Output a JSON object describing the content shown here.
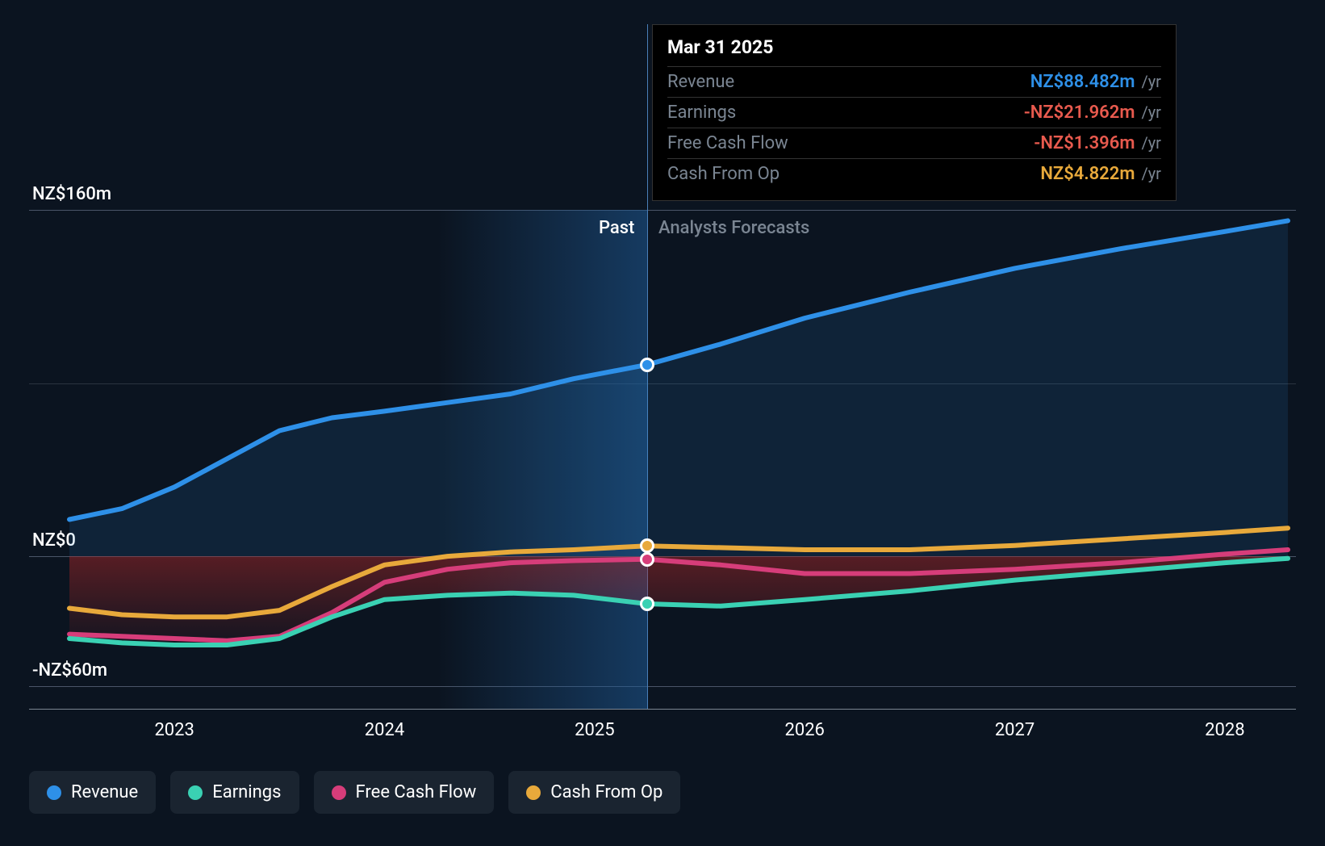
{
  "chart": {
    "type": "line",
    "background_color": "#0b1420",
    "grid_color_major": "#4a5568",
    "grid_color_minor": "#2a3440",
    "text_color": "#ffffff",
    "muted_text_color": "#7a8592",
    "line_width": 6,
    "marker_size": 18,
    "marker_border": "#ffffff",
    "y_axis": {
      "min": -60,
      "max": 160,
      "ticks": [
        {
          "value": 160,
          "label": "NZ$160m"
        },
        {
          "value": 0,
          "label": "NZ$0"
        },
        {
          "value": -60,
          "label": "-NZ$60m"
        }
      ],
      "minor_tick_at": 80
    },
    "x_axis": {
      "min": 2022.5,
      "max": 2028.3,
      "ticks": [
        2023,
        2024,
        2025,
        2026,
        2027,
        2028
      ]
    },
    "divider": {
      "x": 2025.25,
      "past_label": "Past",
      "forecast_label": "Analysts Forecasts",
      "gradient_from": "rgba(30,90,150,0.0)",
      "gradient_to": "rgba(30,90,150,0.55)"
    },
    "series": [
      {
        "key": "revenue",
        "label": "Revenue",
        "color": "#2e90e8",
        "fill_below": "rgba(46,144,232,0.12)",
        "points": [
          [
            2022.5,
            17
          ],
          [
            2022.75,
            22
          ],
          [
            2023.0,
            32
          ],
          [
            2023.25,
            45
          ],
          [
            2023.5,
            58
          ],
          [
            2023.75,
            64
          ],
          [
            2024.0,
            67
          ],
          [
            2024.3,
            71
          ],
          [
            2024.6,
            75
          ],
          [
            2024.9,
            82
          ],
          [
            2025.25,
            88.482
          ],
          [
            2025.6,
            98
          ],
          [
            2026.0,
            110
          ],
          [
            2026.5,
            122
          ],
          [
            2027.0,
            133
          ],
          [
            2027.5,
            142
          ],
          [
            2028.0,
            150
          ],
          [
            2028.3,
            155
          ]
        ]
      },
      {
        "key": "earnings",
        "label": "Earnings",
        "color": "#3ad1b3",
        "fill_negative_below_zero": true,
        "fill_neg_color": "rgba(180,40,40,0.35)",
        "points": [
          [
            2022.5,
            -38
          ],
          [
            2022.75,
            -40
          ],
          [
            2023.0,
            -41
          ],
          [
            2023.25,
            -41
          ],
          [
            2023.5,
            -38
          ],
          [
            2023.75,
            -28
          ],
          [
            2024.0,
            -20
          ],
          [
            2024.3,
            -18
          ],
          [
            2024.6,
            -17
          ],
          [
            2024.9,
            -18
          ],
          [
            2025.25,
            -21.962
          ],
          [
            2025.6,
            -23
          ],
          [
            2026.0,
            -20
          ],
          [
            2026.5,
            -16
          ],
          [
            2027.0,
            -11
          ],
          [
            2027.5,
            -7
          ],
          [
            2028.0,
            -3
          ],
          [
            2028.3,
            -1
          ]
        ]
      },
      {
        "key": "fcf",
        "label": "Free Cash Flow",
        "color": "#d63d7a",
        "points": [
          [
            2022.5,
            -36
          ],
          [
            2022.75,
            -37
          ],
          [
            2023.0,
            -38
          ],
          [
            2023.25,
            -39
          ],
          [
            2023.5,
            -37
          ],
          [
            2023.75,
            -26
          ],
          [
            2024.0,
            -12
          ],
          [
            2024.3,
            -6
          ],
          [
            2024.6,
            -3
          ],
          [
            2024.9,
            -2
          ],
          [
            2025.25,
            -1.396
          ],
          [
            2025.6,
            -4
          ],
          [
            2026.0,
            -8
          ],
          [
            2026.5,
            -8
          ],
          [
            2027.0,
            -6
          ],
          [
            2027.5,
            -3
          ],
          [
            2028.0,
            1
          ],
          [
            2028.3,
            3
          ]
        ]
      },
      {
        "key": "cfo",
        "label": "Cash From Op",
        "color": "#e8a93b",
        "points": [
          [
            2022.5,
            -24
          ],
          [
            2022.75,
            -27
          ],
          [
            2023.0,
            -28
          ],
          [
            2023.25,
            -28
          ],
          [
            2023.5,
            -25
          ],
          [
            2023.75,
            -14
          ],
          [
            2024.0,
            -4
          ],
          [
            2024.3,
            0
          ],
          [
            2024.6,
            2
          ],
          [
            2024.9,
            3
          ],
          [
            2025.25,
            4.822
          ],
          [
            2025.6,
            4
          ],
          [
            2026.0,
            3
          ],
          [
            2026.5,
            3
          ],
          [
            2027.0,
            5
          ],
          [
            2027.5,
            8
          ],
          [
            2028.0,
            11
          ],
          [
            2028.3,
            13
          ]
        ]
      }
    ],
    "tooltip": {
      "title": "Mar 31 2025",
      "rows": [
        {
          "label": "Revenue",
          "value": "NZ$88.482m",
          "unit": "/yr",
          "color": "#2e90e8"
        },
        {
          "label": "Earnings",
          "value": "-NZ$21.962m",
          "unit": "/yr",
          "color": "#e85a4e"
        },
        {
          "label": "Free Cash Flow",
          "value": "-NZ$1.396m",
          "unit": "/yr",
          "color": "#e85a4e"
        },
        {
          "label": "Cash From Op",
          "value": "NZ$4.822m",
          "unit": "/yr",
          "color": "#e8a93b"
        }
      ],
      "background": "#000000",
      "border": "#333333"
    },
    "legend": [
      {
        "key": "revenue",
        "label": "Revenue",
        "color": "#2e90e8"
      },
      {
        "key": "earnings",
        "label": "Earnings",
        "color": "#3ad1b3"
      },
      {
        "key": "fcf",
        "label": "Free Cash Flow",
        "color": "#d63d7a"
      },
      {
        "key": "cfo",
        "label": "Cash From Op",
        "color": "#e8a93b"
      }
    ]
  }
}
